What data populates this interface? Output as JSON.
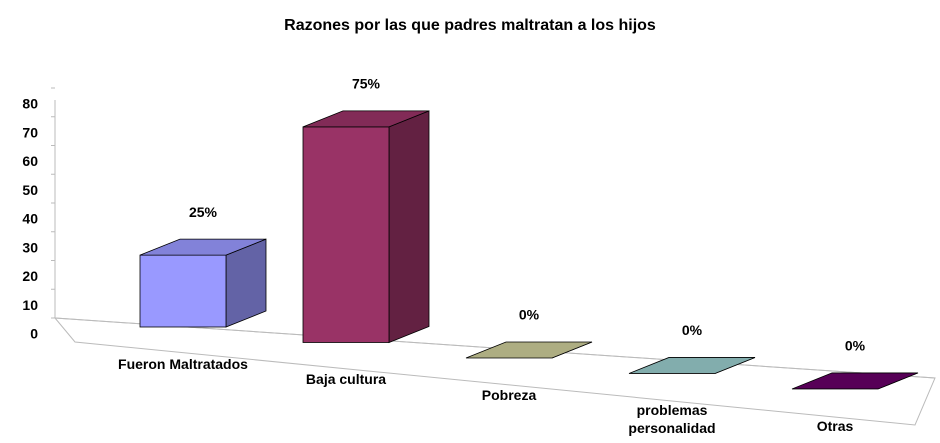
{
  "chart_data": {
    "type": "bar3d",
    "title": "Razones por las que padres maltratan a los hijos",
    "categories": [
      "Fueron Maltratados",
      "Baja cultura",
      "Pobreza",
      "problemas personalidad",
      "Otras"
    ],
    "values": [
      25,
      75,
      0,
      0,
      0
    ],
    "value_labels": [
      "25%",
      "75%",
      "0%",
      "0%",
      "0%"
    ],
    "colors": [
      "#9999ff",
      "#993366",
      "#cccc99",
      "#99cccc",
      "#660066"
    ],
    "ylim": [
      0,
      80
    ],
    "yticks": [
      0,
      10,
      20,
      30,
      40,
      50,
      60,
      70,
      80
    ]
  }
}
